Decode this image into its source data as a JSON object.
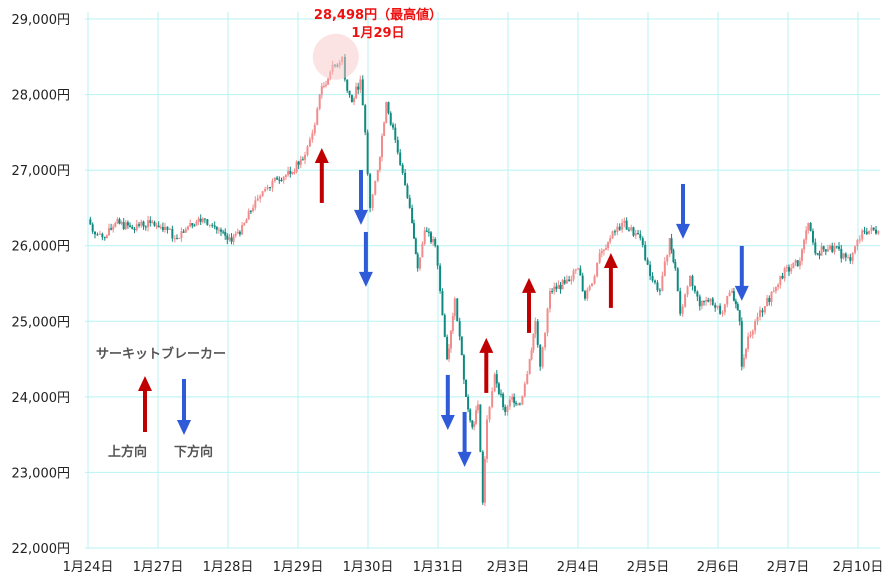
{
  "chart_data": {
    "type": "candlestick",
    "title": "",
    "xlabel": "",
    "ylabel": "",
    "ylim": [
      22000,
      29000
    ],
    "yticks": [
      22000,
      23000,
      24000,
      25000,
      26000,
      27000,
      28000,
      29000
    ],
    "ytick_labels": [
      "22,000円",
      "23,000円",
      "24,000円",
      "25,000円",
      "26,000円",
      "27,000円",
      "28,000円",
      "29,000円"
    ],
    "x_unit": "trading day index (0 = 1月24日)",
    "xticks": [
      "1月24日",
      "1月27日",
      "1月28日",
      "1月29日",
      "1月30日",
      "1月31日",
      "2月3日",
      "2月4日",
      "2月5日",
      "2月6日",
      "2月7日",
      "2月10日"
    ],
    "grid": true,
    "colors": {
      "up": "#f28b8b",
      "down": "#0f8a80",
      "grid": "#b8f2f2",
      "up_arrow": "#c00000",
      "down_arrow": "#2f5ad8",
      "annotation": "#ee1111"
    },
    "prices": [
      [
        0,
        26350
      ],
      [
        0.1,
        26150
      ],
      [
        0.24,
        26100
      ],
      [
        0.39,
        26300
      ],
      [
        0.6,
        26250
      ],
      [
        0.89,
        26300
      ],
      [
        1.1,
        26250
      ],
      [
        1.24,
        26100
      ],
      [
        1.46,
        26300
      ],
      [
        1.67,
        26350
      ],
      [
        1.81,
        26250
      ],
      [
        1.99,
        26080
      ],
      [
        2.17,
        26150
      ],
      [
        2.39,
        26600
      ],
      [
        2.53,
        26750
      ],
      [
        2.67,
        26900
      ],
      [
        2.89,
        26950
      ],
      [
        3.1,
        27200
      ],
      [
        3.24,
        27600
      ],
      [
        3.31,
        28000
      ],
      [
        3.46,
        28300
      ],
      [
        3.63,
        28498
      ],
      [
        3.67,
        28200
      ],
      [
        3.77,
        27900
      ],
      [
        3.89,
        28200
      ],
      [
        3.96,
        27500
      ],
      [
        4.03,
        26500
      ],
      [
        4.14,
        27000
      ],
      [
        4.26,
        27900
      ],
      [
        4.39,
        27400
      ],
      [
        4.53,
        26800
      ],
      [
        4.63,
        26300
      ],
      [
        4.71,
        25700
      ],
      [
        4.81,
        26200
      ],
      [
        4.96,
        26000
      ],
      [
        5.03,
        25400
      ],
      [
        5.13,
        24500
      ],
      [
        5.24,
        25300
      ],
      [
        5.31,
        24800
      ],
      [
        5.4,
        24000
      ],
      [
        5.49,
        23600
      ],
      [
        5.57,
        23900
      ],
      [
        5.64,
        22600
      ],
      [
        5.7,
        23700
      ],
      [
        5.81,
        24300
      ],
      [
        5.96,
        23800
      ],
      [
        6.06,
        24000
      ],
      [
        6.17,
        23900
      ],
      [
        6.31,
        24500
      ],
      [
        6.39,
        25000
      ],
      [
        6.46,
        24400
      ],
      [
        6.6,
        25400
      ],
      [
        6.81,
        25500
      ],
      [
        7.0,
        25700
      ],
      [
        7.1,
        25300
      ],
      [
        7.2,
        25500
      ],
      [
        7.31,
        25900
      ],
      [
        7.46,
        26100
      ],
      [
        7.63,
        26300
      ],
      [
        7.89,
        26100
      ],
      [
        8.03,
        25600
      ],
      [
        8.17,
        25400
      ],
      [
        8.31,
        26100
      ],
      [
        8.39,
        25700
      ],
      [
        8.46,
        25100
      ],
      [
        8.6,
        25600
      ],
      [
        8.74,
        25200
      ],
      [
        8.89,
        25300
      ],
      [
        9.03,
        25100
      ],
      [
        9.2,
        25400
      ],
      [
        9.31,
        25000
      ],
      [
        9.34,
        24400
      ],
      [
        9.43,
        24800
      ],
      [
        9.53,
        25000
      ],
      [
        9.67,
        25200
      ],
      [
        9.89,
        25600
      ],
      [
        10.17,
        25800
      ],
      [
        10.29,
        26300
      ],
      [
        10.39,
        25900
      ],
      [
        10.6,
        26000
      ],
      [
        10.89,
        25800
      ],
      [
        11.06,
        26200
      ],
      [
        11.29,
        26200
      ]
    ],
    "peak": {
      "x": 3.54,
      "price": 28500,
      "label_line1": "28,498円（最高値）",
      "label_line2": "1月29日"
    },
    "circuit_breaker_arrows": [
      {
        "dir": "up",
        "x": 3.34,
        "top": 27293,
        "bottom": 26566
      },
      {
        "dir": "down",
        "x": 3.9,
        "top": 27002,
        "bottom": 26275
      },
      {
        "dir": "down",
        "x": 3.97,
        "top": 26182,
        "bottom": 25455
      },
      {
        "dir": "down",
        "x": 5.14,
        "top": 24290,
        "bottom": 23562
      },
      {
        "dir": "down",
        "x": 5.38,
        "top": 23800,
        "bottom": 23073
      },
      {
        "dir": "up",
        "x": 5.69,
        "top": 24780,
        "bottom": 24052
      },
      {
        "dir": "up",
        "x": 6.3,
        "top": 25574,
        "bottom": 24846
      },
      {
        "dir": "up",
        "x": 7.47,
        "top": 25904,
        "bottom": 25177
      },
      {
        "dir": "down",
        "x": 8.5,
        "top": 26817,
        "bottom": 26090
      },
      {
        "dir": "down",
        "x": 9.34,
        "top": 25997,
        "bottom": 25270
      }
    ],
    "legend": {
      "title": "サーキットブレーカー",
      "up_label": "上方向",
      "down_label": "下方向",
      "placement": "left-middle"
    }
  }
}
